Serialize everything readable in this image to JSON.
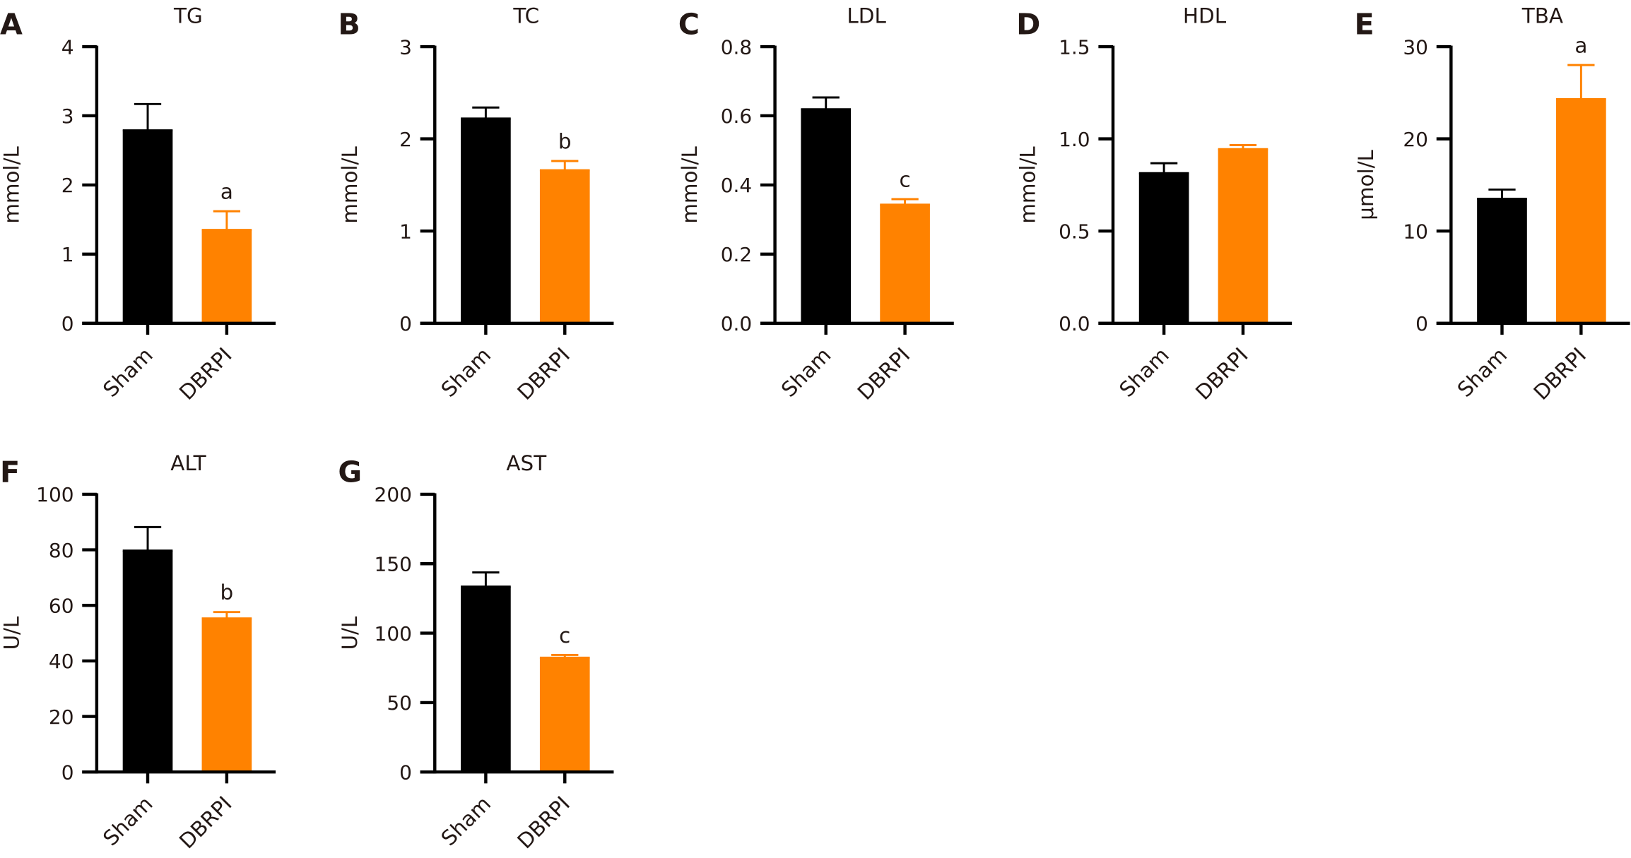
{
  "figure": {
    "groups": [
      "Sham",
      "DBRPI"
    ],
    "colors": {
      "Sham": "#000000",
      "DBRPI": "#FF8200"
    }
  },
  "chart_data": [
    {
      "type": "bar",
      "panel": "A",
      "title": "TG",
      "xlabel": "",
      "ylabel": "mmol/L",
      "categories": [
        "Sham",
        "DBRPI"
      ],
      "ylim": [
        0,
        4
      ],
      "yticks": [
        "0",
        "1",
        "2",
        "3",
        "4"
      ],
      "ytick_values": [
        0,
        1,
        2,
        3,
        4
      ],
      "values": [
        2.79,
        1.35
      ],
      "errors": [
        0.38,
        0.27
      ],
      "significance": [
        "",
        "a"
      ]
    },
    {
      "type": "bar",
      "panel": "B",
      "title": "TC",
      "xlabel": "",
      "ylabel": "mmol/L",
      "categories": [
        "Sham",
        "DBRPI"
      ],
      "ylim": [
        0,
        3
      ],
      "yticks": [
        "0",
        "1",
        "2",
        "3"
      ],
      "ytick_values": [
        0,
        1,
        2,
        3
      ],
      "values": [
        2.22,
        1.66
      ],
      "errors": [
        0.12,
        0.1
      ],
      "significance": [
        "",
        "b"
      ]
    },
    {
      "type": "bar",
      "panel": "C",
      "title": "LDL",
      "xlabel": "",
      "ylabel": "mmol/L",
      "categories": [
        "Sham",
        "DBRPI"
      ],
      "ylim": [
        0,
        0.8
      ],
      "yticks": [
        "0.0",
        "0.2",
        "0.4",
        "0.6",
        "0.8"
      ],
      "ytick_values": [
        0,
        0.2,
        0.4,
        0.6,
        0.8
      ],
      "values": [
        0.619,
        0.343
      ],
      "errors": [
        0.034,
        0.016
      ],
      "significance": [
        "",
        "c"
      ]
    },
    {
      "type": "bar",
      "panel": "D",
      "title": "HDL",
      "xlabel": "",
      "ylabel": "mmol/L",
      "categories": [
        "Sham",
        "DBRPI"
      ],
      "ylim": [
        0,
        1.5
      ],
      "yticks": [
        "0.0",
        "0.5",
        "1.0",
        "1.5"
      ],
      "ytick_values": [
        0,
        0.5,
        1.0,
        1.5
      ],
      "values": [
        0.814,
        0.944
      ],
      "errors": [
        0.054,
        0.022
      ],
      "significance": [
        "",
        ""
      ]
    },
    {
      "type": "bar",
      "panel": "E",
      "title": "TBA",
      "xlabel": "",
      "ylabel": "μmol/L",
      "categories": [
        "Sham",
        "DBRPI"
      ],
      "ylim": [
        0,
        30
      ],
      "yticks": [
        "0",
        "10",
        "20",
        "30"
      ],
      "ytick_values": [
        0,
        10,
        20,
        30
      ],
      "values": [
        13.5,
        24.3
      ],
      "errors": [
        1.0,
        3.7
      ],
      "significance": [
        "",
        "a"
      ]
    },
    {
      "type": "bar",
      "panel": "F",
      "title": "ALT",
      "xlabel": "",
      "ylabel": "U/L",
      "categories": [
        "Sham",
        "DBRPI"
      ],
      "ylim": [
        0,
        100
      ],
      "yticks": [
        "0",
        "20",
        "40",
        "60",
        "80",
        "100"
      ],
      "ytick_values": [
        0,
        20,
        40,
        60,
        80,
        100
      ],
      "values": [
        79.7,
        55.3
      ],
      "errors": [
        8.5,
        2.3
      ],
      "significance": [
        "",
        "b"
      ]
    },
    {
      "type": "bar",
      "panel": "G",
      "title": "AST",
      "xlabel": "",
      "ylabel": "U/L",
      "categories": [
        "Sham",
        "DBRPI"
      ],
      "ylim": [
        0,
        200
      ],
      "yticks": [
        "0",
        "50",
        "100",
        "150",
        "200"
      ],
      "ytick_values": [
        0,
        50,
        100,
        150,
        200
      ],
      "values": [
        133.5,
        82.3
      ],
      "errors": [
        10.2,
        2.0
      ],
      "significance": [
        "",
        "c"
      ]
    }
  ]
}
